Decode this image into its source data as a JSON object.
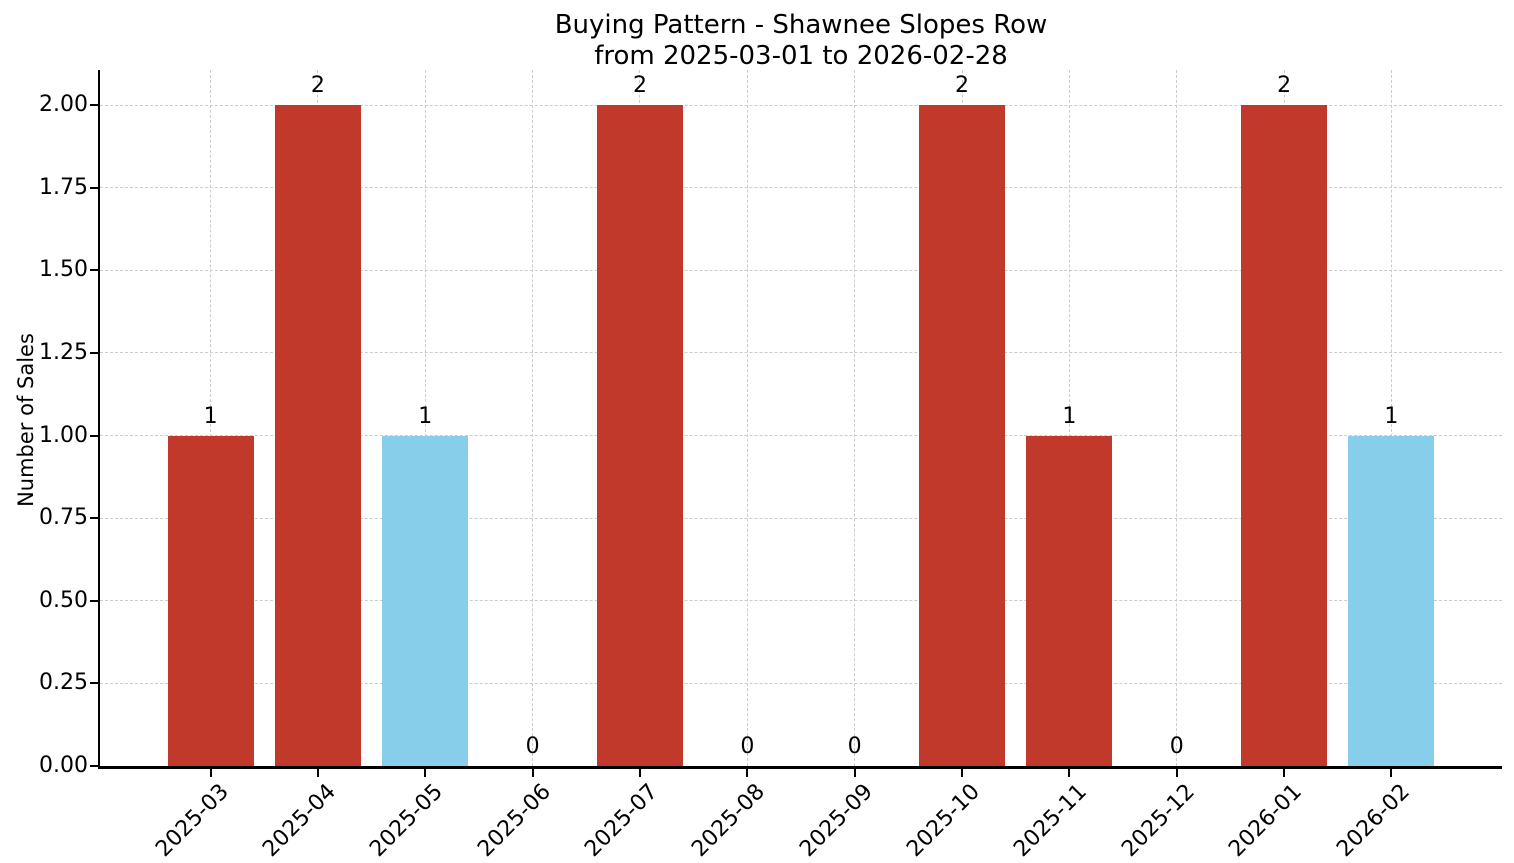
{
  "title": {
    "line1": "Buying Pattern - Shawnee Slopes Row",
    "line2": "from 2025-03-01 to 2026-02-28"
  },
  "chart_data": {
    "type": "bar",
    "title": "Buying Pattern - Shawnee Slopes Row\nfrom 2025-03-01 to 2026-02-28",
    "xlabel": "",
    "ylabel": "Number of Sales",
    "categories": [
      "2025-03",
      "2025-04",
      "2025-05",
      "2025-06",
      "2025-07",
      "2025-08",
      "2025-09",
      "2025-10",
      "2025-11",
      "2025-12",
      "2026-01",
      "2026-02"
    ],
    "values": [
      1,
      2,
      1,
      0,
      2,
      0,
      0,
      2,
      1,
      0,
      2,
      1
    ],
    "bar_labels": [
      "1",
      "2",
      "1",
      "0",
      "2",
      "0",
      "0",
      "2",
      "1",
      "0",
      "2",
      "1"
    ],
    "bar_colors": [
      "#c0392b",
      "#c0392b",
      "#87ceeb",
      "#c0392b",
      "#c0392b",
      "#c0392b",
      "#c0392b",
      "#c0392b",
      "#c0392b",
      "#c0392b",
      "#c0392b",
      "#87ceeb"
    ],
    "ylim": [
      0,
      2.1
    ],
    "yticks": [
      "0.00",
      "0.25",
      "0.50",
      "0.75",
      "1.00",
      "1.25",
      "1.50",
      "1.75",
      "2.00"
    ],
    "ytick_values": [
      0,
      0.25,
      0.5,
      0.75,
      1.0,
      1.25,
      1.5,
      1.75,
      2.0
    ],
    "grid": true,
    "legend": false
  },
  "colors": {
    "bar_red": "#c0392b",
    "bar_blue": "#87ceeb",
    "grid": "#cccccc",
    "spine": "#000000",
    "text": "#000000",
    "background": "#ffffff"
  }
}
